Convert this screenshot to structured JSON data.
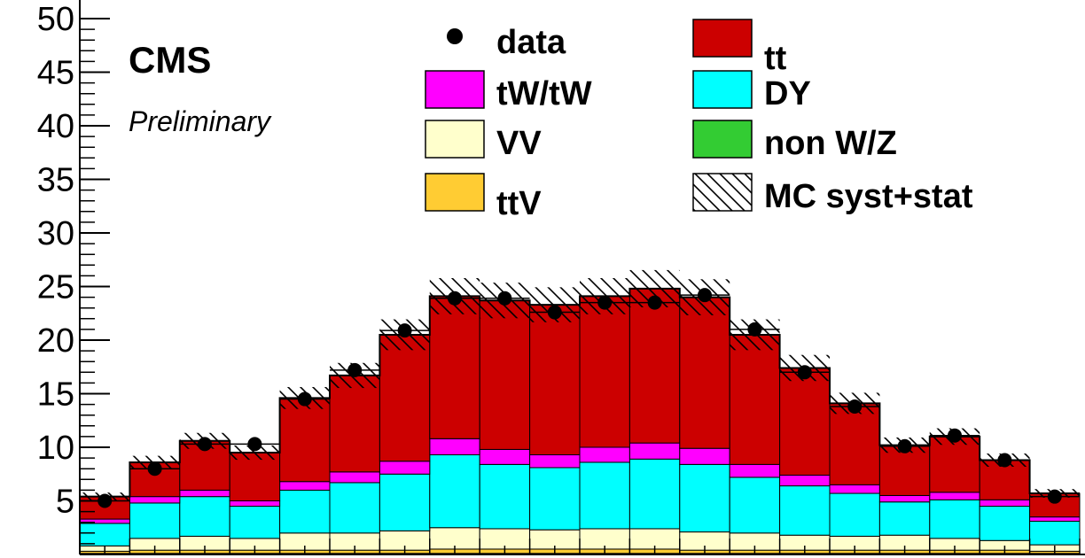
{
  "chart_data": {
    "type": "bar",
    "stacked": true,
    "bins": 20,
    "ylim": [
      0,
      50
    ],
    "yticks": [
      "5",
      "10",
      "15",
      "20",
      "25",
      "30",
      "35",
      "40",
      "45",
      "50"
    ],
    "ytick_values": [
      5,
      10,
      15,
      20,
      25,
      30,
      35,
      40,
      45,
      50
    ],
    "grid": false,
    "legend_position": "top-right",
    "experiment_label": "CMS",
    "status_label": "Preliminary",
    "series": [
      {
        "name": "non W/Z",
        "color": "#33cc33",
        "values": [
          0.1,
          0.1,
          0.1,
          0.1,
          0.1,
          0.1,
          0.1,
          0.1,
          0.1,
          0.1,
          0.1,
          0.1,
          0.1,
          0.1,
          0.1,
          0.1,
          0.1,
          0.1,
          0.1,
          0.1
        ]
      },
      {
        "name": "ttV",
        "color": "#ffcc33",
        "values": [
          0.2,
          0.3,
          0.3,
          0.3,
          0.3,
          0.3,
          0.3,
          0.4,
          0.4,
          0.4,
          0.4,
          0.4,
          0.3,
          0.3,
          0.3,
          0.3,
          0.3,
          0.3,
          0.3,
          0.2
        ]
      },
      {
        "name": "VV",
        "color": "#ffffcc",
        "values": [
          0.5,
          1.1,
          1.3,
          1.1,
          1.6,
          1.6,
          1.8,
          2.0,
          1.9,
          1.8,
          1.9,
          1.9,
          1.7,
          1.6,
          1.4,
          1.3,
          1.4,
          1.1,
          0.9,
          0.6
        ]
      },
      {
        "name": "DY",
        "color": "#00ffff",
        "values": [
          2.1,
          3.3,
          3.7,
          3.0,
          4.0,
          4.7,
          5.3,
          6.8,
          6.0,
          5.8,
          6.2,
          6.5,
          6.3,
          5.2,
          4.6,
          4.0,
          3.1,
          3.6,
          3.2,
          2.2
        ]
      },
      {
        "name": "tW/tW",
        "color": "#ff00ff",
        "values": [
          0.4,
          0.6,
          0.6,
          0.5,
          0.8,
          1.0,
          1.2,
          1.5,
          1.4,
          1.2,
          1.4,
          1.5,
          1.5,
          1.2,
          1.0,
          0.8,
          0.6,
          0.7,
          0.6,
          0.4
        ]
      },
      {
        "name": "tt",
        "color": "#cc0000",
        "values": [
          2.1,
          3.2,
          4.6,
          4.5,
          7.8,
          9.0,
          11.8,
          13.3,
          13.9,
          14.0,
          14.1,
          14.4,
          14.1,
          12.1,
          10.0,
          7.6,
          4.7,
          5.2,
          3.7,
          2.2
        ]
      }
    ],
    "data_points": {
      "name": "data",
      "values": [
        5.0,
        8.0,
        10.3,
        10.3,
        14.5,
        17.2,
        20.9,
        23.9,
        23.9,
        22.6,
        23.5,
        23.5,
        24.2,
        21.0,
        17.0,
        13.8,
        10.1,
        11.1,
        8.8,
        5.4
      ]
    },
    "uncertainty_band": {
      "name": "MC syst+stat",
      "relative_half_width": 0.07
    },
    "legend": [
      {
        "name": "data",
        "symbol": "dot"
      },
      {
        "name": "tt",
        "symbol": "box",
        "color": "#cc0000",
        "overline_t": true
      },
      {
        "name": "tW/tW",
        "symbol": "box",
        "color": "#ff00ff"
      },
      {
        "name": "DY",
        "symbol": "box",
        "color": "#00ffff"
      },
      {
        "name": "VV",
        "symbol": "box",
        "color": "#ffffcc"
      },
      {
        "name": "non W/Z",
        "symbol": "box",
        "color": "#33cc33"
      },
      {
        "name": "ttV",
        "symbol": "box",
        "color": "#ffcc33"
      },
      {
        "name": "MC syst+stat",
        "symbol": "hatch"
      }
    ]
  }
}
